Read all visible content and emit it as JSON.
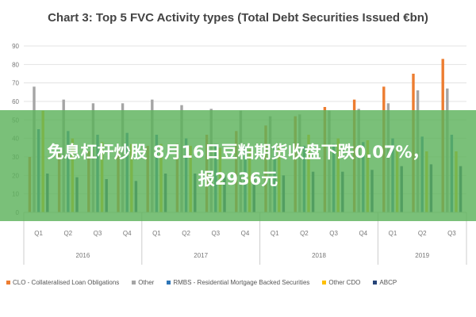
{
  "chart_data": {
    "type": "bar",
    "title": "Chart 3: Top 5 FVC Activity types (Total Debt Securities Issued €bn)",
    "xlabel": "",
    "ylabel": "",
    "ylim": [
      0,
      90
    ],
    "yticks": [
      0,
      10,
      20,
      30,
      40,
      50,
      60,
      70,
      80,
      90
    ],
    "categories": [
      "Q1",
      "Q2",
      "Q3",
      "Q4",
      "Q1",
      "Q2",
      "Q3",
      "Q4",
      "Q1",
      "Q2",
      "Q3",
      "Q4",
      "Q1",
      "Q2",
      "Q3"
    ],
    "groups": [
      {
        "label": "2016",
        "count": 4
      },
      {
        "label": "2017",
        "count": 4
      },
      {
        "label": "2018",
        "count": 4
      },
      {
        "label": "2019",
        "count": 3
      }
    ],
    "grid": true,
    "legend_position": "bottom",
    "series": [
      {
        "name": "CLO - Collateralised Loan Obligations",
        "color": "#ED7D31",
        "values": [
          30,
          32,
          33,
          35,
          36,
          37,
          42,
          44,
          47,
          52,
          57,
          61,
          68,
          75,
          83
        ]
      },
      {
        "name": "Other",
        "color": "#A5A5A5",
        "values": [
          68,
          61,
          59,
          59,
          61,
          58,
          56,
          55,
          52,
          53,
          55,
          56,
          59,
          66,
          67
        ]
      },
      {
        "name": "RMBS - Residential Mortgage Backed Securities",
        "color": "#2E75B6",
        "values": [
          45,
          44,
          42,
          43,
          42,
          40,
          37,
          36,
          35,
          36,
          37,
          38,
          40,
          41,
          42
        ]
      },
      {
        "name": "Other CDO",
        "color": "#FFC000",
        "values": [
          55,
          40,
          38,
          37,
          37,
          36,
          35,
          34,
          36,
          42,
          40,
          39,
          34,
          33,
          33
        ]
      },
      {
        "name": "ABCP",
        "color": "#264478",
        "values": [
          21,
          19,
          18,
          17,
          21,
          21,
          20,
          20,
          20,
          22,
          22,
          23,
          25,
          26,
          25
        ]
      }
    ]
  },
  "banner": {
    "line1": "免息杠杆炒股 8月16日豆粕期货收盘下跌0.07%，",
    "line2": "报2936元"
  }
}
